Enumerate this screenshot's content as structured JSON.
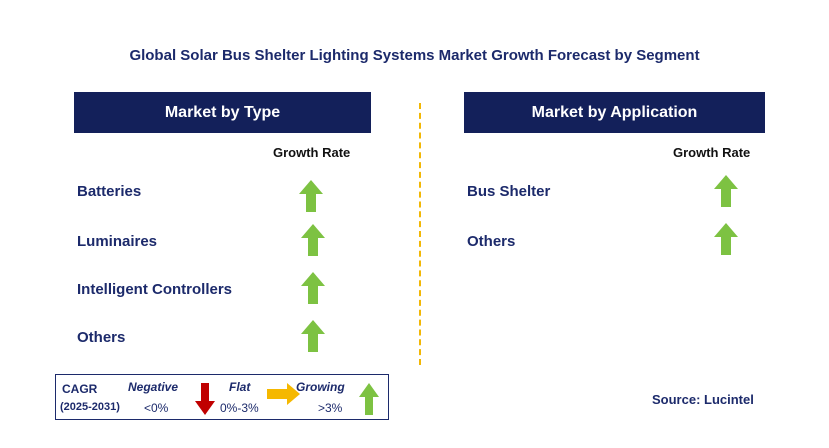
{
  "title": "Global Solar Bus Shelter Lighting Systems Market Growth Forecast by Segment",
  "left_panel": {
    "header": "Market by Type",
    "column_label": "Growth Rate",
    "rows": [
      {
        "label": "Batteries",
        "trend": "Growing"
      },
      {
        "label": "Luminaires",
        "trend": "Growing"
      },
      {
        "label": "Intelligent Controllers",
        "trend": "Growing"
      },
      {
        "label": "Others",
        "trend": "Growing"
      }
    ]
  },
  "right_panel": {
    "header": "Market by Application",
    "column_label": "Growth Rate",
    "rows": [
      {
        "label": "Bus Shelter",
        "trend": "Growing"
      },
      {
        "label": "Others",
        "trend": "Growing"
      }
    ]
  },
  "legend": {
    "cagr_label": "CAGR",
    "period": "(2025-2031)",
    "negative": {
      "label": "Negative",
      "range": "<0%",
      "icon": "down-arrow-icon",
      "color": "#c00000"
    },
    "flat": {
      "label": "Flat",
      "range": "0%-3%",
      "icon": "right-arrow-icon",
      "color": "#f5b800"
    },
    "growing": {
      "label": "Growing",
      "range": ">3%",
      "icon": "up-arrow-icon",
      "color": "#7dc242"
    }
  },
  "source": "Source: Lucintel",
  "colors": {
    "header_bg": "#13205a",
    "divider": "#f2b705",
    "up_arrow": "#7dc242"
  },
  "chart_data": {
    "type": "table",
    "title": "Global Solar Bus Shelter Lighting Systems Market Growth Forecast by Segment",
    "segments": [
      {
        "name": "Market by Type",
        "categories": [
          "Batteries",
          "Luminaires",
          "Intelligent Controllers",
          "Others"
        ],
        "growth": [
          "Growing",
          "Growing",
          "Growing",
          "Growing"
        ]
      },
      {
        "name": "Market by Application",
        "categories": [
          "Bus Shelter",
          "Others"
        ],
        "growth": [
          "Growing",
          "Growing"
        ]
      }
    ]
  }
}
